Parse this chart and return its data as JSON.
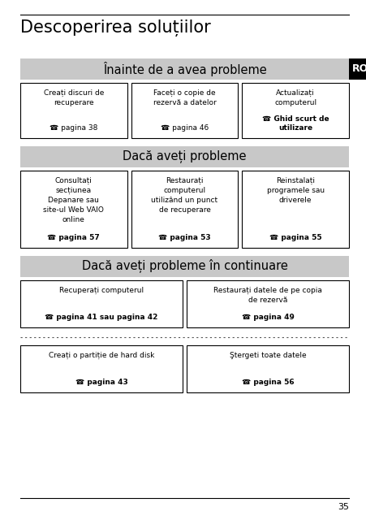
{
  "title": "Descoperirea soluțiilor",
  "title_fontsize": 15,
  "ro_label": "RO",
  "ro_box_color": "#000000",
  "ro_text_color": "#ffffff",
  "section1_header": "Înainte de a avea probleme",
  "section2_header": "Dacă aveți probleme",
  "section3_header": "Dacă aveți probleme în continuare",
  "section_header_bg": "#c8c8c8",
  "section_header_fontsize": 10.5,
  "box_bg": "#ffffff",
  "box_border": "#000000",
  "section1_boxes": [
    {
      "main_text": "Creați discuri de\nrecuperare",
      "ref_text": "☎ pagina 38",
      "ref_bold": false
    },
    {
      "main_text": "Faceți o copie de\nrezervă a datelor",
      "ref_text": "☎ pagina 46",
      "ref_bold": false
    },
    {
      "main_text": "Actualizați\ncomputerul",
      "ref_text": "☎ Ghid scurt de\nutilizare",
      "ref_bold": true
    }
  ],
  "section2_boxes": [
    {
      "main_text": "Consultați\nsecțiunea\nDepanare sau\nsite-ul Web VAIO\nonline",
      "ref_text": "☎ pagina 57",
      "ref_bold": true
    },
    {
      "main_text": "Restaurați\ncomputerul\nutilizând un punct\nde recuperare",
      "ref_text": "☎ pagina 53",
      "ref_bold": true
    },
    {
      "main_text": "Reinstalați\nprogramele sau\ndriverele",
      "ref_text": "☎ pagina 55",
      "ref_bold": true
    }
  ],
  "section3_boxes_row1": [
    {
      "main_text": "Recuperați computerul",
      "ref_text": "☎ pagina 41 sau pagina 42",
      "ref_bold": true
    },
    {
      "main_text": "Restaurați datele de pe copia\nde rezervă",
      "ref_text": "☎ pagina 49",
      "ref_bold": true
    }
  ],
  "section3_boxes_row2": [
    {
      "main_text": "Creați o partiție de hard disk",
      "ref_text": "☎ pagina 43",
      "ref_bold": true
    },
    {
      "main_text": "Ştergeti toate datele",
      "ref_text": "☎ pagina 56",
      "ref_bold": true
    }
  ],
  "page_number": "35",
  "bg_color": "#ffffff"
}
